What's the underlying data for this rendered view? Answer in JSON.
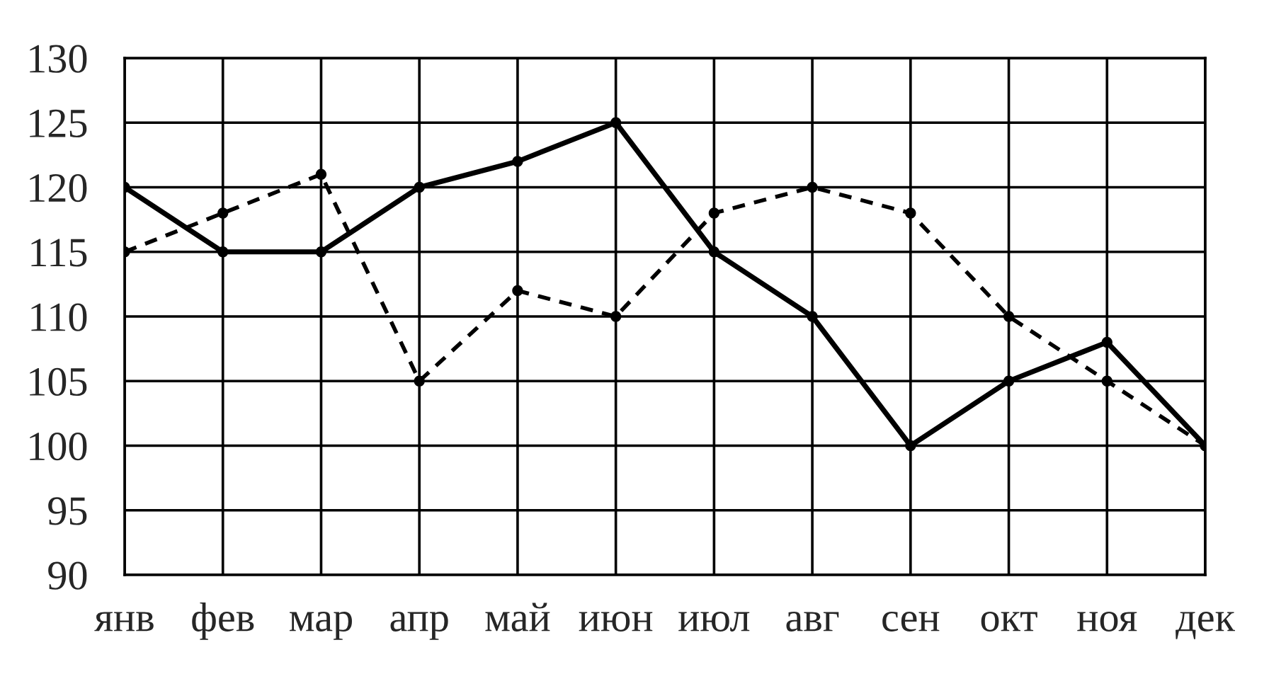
{
  "chart_data": {
    "type": "line",
    "categories": [
      "янв",
      "фев",
      "мар",
      "апр",
      "май",
      "июн",
      "июл",
      "авг",
      "сен",
      "окт",
      "ноя",
      "дек"
    ],
    "series": [
      {
        "color": "#000000",
        "line_style": "solid",
        "values": [
          120,
          115,
          115,
          120,
          122,
          125,
          115,
          110,
          100,
          105,
          108,
          100
        ]
      },
      {
        "color": "#000000",
        "line_style": "dashed",
        "values": [
          115,
          118,
          121,
          105,
          112,
          110,
          118,
          120,
          118,
          110,
          105,
          100
        ]
      }
    ],
    "ylim": [
      90,
      130
    ],
    "yticks": [
      90,
      95,
      100,
      105,
      110,
      115,
      120,
      125,
      130
    ],
    "grid": true,
    "marker": "circle"
  }
}
